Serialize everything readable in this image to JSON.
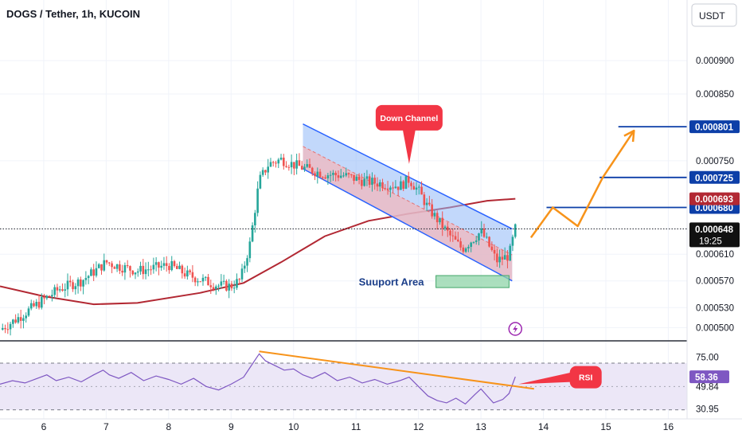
{
  "header": {
    "symbol": "DOGS / Tether, 1h, KUCOIN",
    "currency_button": "USDT"
  },
  "colors": {
    "up": "#26a69a",
    "down": "#ef5350",
    "ma": "#b22833",
    "channel_fill": "#90b8f8",
    "channel_line": "#2962ff",
    "target": "#f7931a",
    "support_fill": "#8fd4a8",
    "level_line": "#0d3fa8",
    "rsi_line": "#7e57c2",
    "rsi_band": "#ece7f7",
    "callout": "#f23645"
  },
  "annotations": {
    "down_channel": "Down Channel",
    "support_area": "Suuport Area",
    "rsi": "RSI",
    "lightning_icon": "lightning-icon"
  },
  "chart_data": [
    {
      "type": "candlestick",
      "title": "DOGS / Tether, 1h, KUCOIN",
      "x_ticks": [
        "6",
        "7",
        "8",
        "9",
        "10",
        "11",
        "12",
        "13",
        "14",
        "15",
        "16"
      ],
      "x_range": [
        5.3,
        16.3
      ],
      "y_ticks": [
        "0.000900",
        "0.000850",
        "0.000750",
        "0.000610",
        "0.000570",
        "0.000530",
        "0.000500"
      ],
      "y_range": [
        0.000485,
        0.000955
      ],
      "grid": true,
      "path_waypoints": [
        [
          5.3,
          0.000497
        ],
        [
          5.55,
          0.000512
        ],
        [
          5.85,
          0.000532
        ],
        [
          6.05,
          0.000545
        ],
        [
          6.25,
          0.000558
        ],
        [
          6.6,
          0.00057
        ],
        [
          6.85,
          0.000587
        ],
        [
          7.0,
          0.000598
        ],
        [
          7.2,
          0.000592
        ],
        [
          7.5,
          0.000585
        ],
        [
          7.8,
          0.00059
        ],
        [
          8.0,
          0.000594
        ],
        [
          8.3,
          0.000579
        ],
        [
          8.6,
          0.000569
        ],
        [
          8.8,
          0.000563
        ],
        [
          9.0,
          0.000562
        ],
        [
          9.15,
          0.000572
        ],
        [
          9.3,
          0.000625
        ],
        [
          9.45,
          0.00072
        ],
        [
          9.6,
          0.000745
        ],
        [
          9.8,
          0.000752
        ],
        [
          10.0,
          0.000744
        ],
        [
          10.2,
          0.000738
        ],
        [
          10.5,
          0.00073
        ],
        [
          10.8,
          0.000728
        ],
        [
          11.1,
          0.00072
        ],
        [
          11.4,
          0.000716
        ],
        [
          11.7,
          0.000712
        ],
        [
          11.85,
          0.000722
        ],
        [
          12.0,
          0.000705
        ],
        [
          12.15,
          0.00068
        ],
        [
          12.3,
          0.000662
        ],
        [
          12.5,
          0.000638
        ],
        [
          12.7,
          0.000618
        ],
        [
          12.9,
          0.000635
        ],
        [
          13.0,
          0.000644
        ],
        [
          13.1,
          0.000628
        ],
        [
          13.25,
          0.0006
        ],
        [
          13.45,
          0.000608
        ],
        [
          13.55,
          0.000648
        ]
      ],
      "moving_average": [
        [
          5.3,
          0.000562
        ],
        [
          6.0,
          0.000547
        ],
        [
          6.8,
          0.000535
        ],
        [
          7.5,
          0.000537
        ],
        [
          8.5,
          0.000552
        ],
        [
          9.2,
          0.000567
        ],
        [
          9.8,
          0.000598
        ],
        [
          10.5,
          0.000637
        ],
        [
          11.2,
          0.00066
        ],
        [
          11.8,
          0.00067
        ],
        [
          12.5,
          0.00068
        ],
        [
          13.1,
          0.00069
        ],
        [
          13.55,
          0.000693
        ]
      ],
      "down_channel": {
        "upper": [
          [
            10.15,
            0.000805
          ],
          [
            13.5,
            0.000648
          ]
        ],
        "lower": [
          [
            10.15,
            0.000738
          ],
          [
            13.5,
            0.00057
          ]
        ],
        "label": "Down Channel"
      },
      "support_area": {
        "x": [
          12.28,
          13.45
        ],
        "y": [
          0.00056,
          0.000578
        ],
        "label": "Suuport Area"
      },
      "projection": [
        [
          13.8,
          0.000635
        ],
        [
          14.15,
          0.00068
        ],
        [
          14.55,
          0.000652
        ],
        [
          14.95,
          0.000725
        ],
        [
          15.45,
          0.000795
        ]
      ],
      "levels": [
        {
          "value": "0.000801",
          "x": [
            15.2,
            16.25
          ],
          "label_color": "#0d3fa8"
        },
        {
          "value": "0.000725",
          "x": [
            14.9,
            16.25
          ],
          "label_color": "#0d3fa8"
        },
        {
          "value": "0.000680",
          "x": [
            14.05,
            16.25
          ],
          "label_color": "#0d3fa8"
        }
      ],
      "ma_label": {
        "value": "0.000693",
        "color": "#b22833"
      },
      "last_price": {
        "value": "0.000648",
        "countdown": "19:25",
        "color": "#111111"
      }
    },
    {
      "type": "line",
      "title": "",
      "series": [
        {
          "name": "RSI",
          "values": [
            [
              5.3,
              52
            ],
            [
              5.5,
              55
            ],
            [
              5.7,
              53
            ],
            [
              5.9,
              57
            ],
            [
              6.05,
              60
            ],
            [
              6.2,
              55
            ],
            [
              6.4,
              58
            ],
            [
              6.6,
              54
            ],
            [
              6.8,
              60
            ],
            [
              6.95,
              64
            ],
            [
              7.05,
              60
            ],
            [
              7.2,
              57
            ],
            [
              7.4,
              62
            ],
            [
              7.6,
              55
            ],
            [
              7.8,
              59
            ],
            [
              8.0,
              56
            ],
            [
              8.2,
              52
            ],
            [
              8.4,
              57
            ],
            [
              8.6,
              50
            ],
            [
              8.8,
              47
            ],
            [
              9.0,
              52
            ],
            [
              9.2,
              58
            ],
            [
              9.35,
              70
            ],
            [
              9.45,
              78
            ],
            [
              9.55,
              72
            ],
            [
              9.7,
              68
            ],
            [
              9.85,
              64
            ],
            [
              10.0,
              65
            ],
            [
              10.15,
              60
            ],
            [
              10.3,
              57
            ],
            [
              10.5,
              62
            ],
            [
              10.7,
              55
            ],
            [
              10.9,
              58
            ],
            [
              11.1,
              53
            ],
            [
              11.3,
              56
            ],
            [
              11.5,
              52
            ],
            [
              11.7,
              55
            ],
            [
              11.85,
              58
            ],
            [
              12.0,
              50
            ],
            [
              12.15,
              42
            ],
            [
              12.3,
              38
            ],
            [
              12.45,
              36
            ],
            [
              12.6,
              40
            ],
            [
              12.75,
              35
            ],
            [
              12.9,
              43
            ],
            [
              13.0,
              48
            ],
            [
              13.1,
              42
            ],
            [
              13.2,
              36
            ],
            [
              13.35,
              39
            ],
            [
              13.45,
              44
            ],
            [
              13.55,
              58.36
            ]
          ]
        }
      ],
      "y_ticks": [
        "75.00",
        "49.84",
        "30.95"
      ],
      "current": {
        "value": "58.36",
        "color": "#7e57c2"
      },
      "bands": [
        30,
        70
      ],
      "y_range": [
        25,
        85
      ],
      "trendline": [
        [
          9.45,
          80
        ],
        [
          13.85,
          48
        ]
      ],
      "callout": "RSI",
      "x_range": [
        5.3,
        16.3
      ]
    }
  ]
}
